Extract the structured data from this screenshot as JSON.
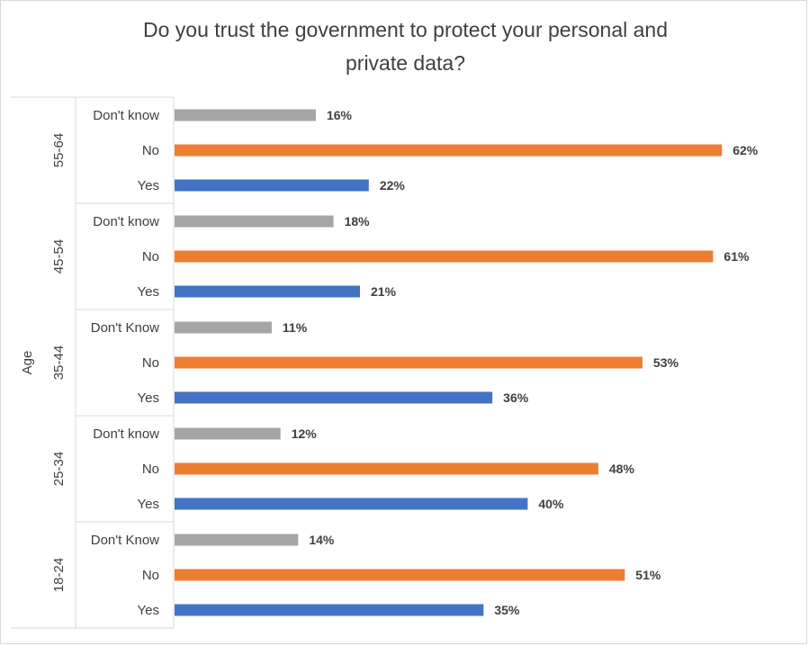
{
  "title": {
    "line1": "Do you trust the government to protect your personal and",
    "line2": "private data?"
  },
  "chart_data": {
    "type": "bar",
    "orientation": "horizontal",
    "title": "Do you trust the government to protect your personal and private data?",
    "ylabel": "Age",
    "xlim": [
      0,
      65
    ],
    "grid": false,
    "legend": "none",
    "value_format": "percent",
    "colors": {
      "Don't know": "#a5a5a5",
      "No": "#ed7d31",
      "Yes": "#4472c4"
    },
    "groups": [
      {
        "label": "55-64",
        "bars": [
          {
            "category": "Don't know",
            "value": 16,
            "label": "16%"
          },
          {
            "category": "No",
            "value": 62,
            "label": "62%"
          },
          {
            "category": "Yes",
            "value": 22,
            "label": "22%"
          }
        ]
      },
      {
        "label": "45-54",
        "bars": [
          {
            "category": "Don't know",
            "value": 18,
            "label": "18%"
          },
          {
            "category": "No",
            "value": 61,
            "label": "61%"
          },
          {
            "category": "Yes",
            "value": 21,
            "label": "21%"
          }
        ]
      },
      {
        "label": "35-44",
        "bars": [
          {
            "category": "Don't Know",
            "value": 11,
            "label": "11%"
          },
          {
            "category": "No",
            "value": 53,
            "label": "53%"
          },
          {
            "category": "Yes",
            "value": 36,
            "label": "36%"
          }
        ]
      },
      {
        "label": "25-34",
        "bars": [
          {
            "category": "Don't know",
            "value": 12,
            "label": "12%"
          },
          {
            "category": "No",
            "value": 48,
            "label": "48%"
          },
          {
            "category": "Yes",
            "value": 40,
            "label": "40%"
          }
        ]
      },
      {
        "label": "18-24",
        "bars": [
          {
            "category": "Don't Know",
            "value": 14,
            "label": "14%"
          },
          {
            "category": "No",
            "value": 51,
            "label": "51%"
          },
          {
            "category": "Yes",
            "value": 35,
            "label": "35%"
          }
        ]
      }
    ]
  }
}
